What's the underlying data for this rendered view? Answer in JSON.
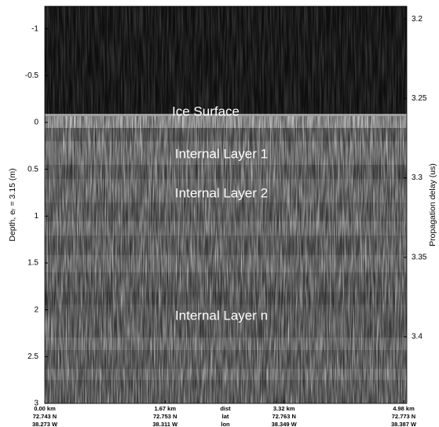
{
  "chart_data": {
    "type": "radargram",
    "ylabel": "Depth, eᵣ = 3.15 (m)",
    "y2label": "Propagation delay (us)",
    "ylim": [
      -1.24,
      3
    ],
    "yticks": [
      -1,
      -0.5,
      0,
      0.5,
      1,
      1.5,
      2,
      2.5,
      3
    ],
    "y2lim": [
      3.192,
      3.442
    ],
    "y2ticks": [
      3.2,
      3.25,
      3.3,
      3.35,
      3.4
    ],
    "xlim": [
      0,
      4.98
    ],
    "xticks": [
      {
        "value": 0,
        "label": "0.00 km"
      },
      {
        "value": 1.67,
        "label": "1.67 km"
      },
      {
        "value": 3.32,
        "label": "3.32 km"
      },
      {
        "value": 4.98,
        "label": "4.98 km"
      }
    ],
    "row_names": [
      "dist",
      "lat",
      "lon"
    ],
    "lat_labels": [
      "72.743 N",
      "72.753 N",
      "72.763 N",
      "72.773 N"
    ],
    "lon_labels": [
      "38.273 W",
      "38.311 W",
      "38.349 W",
      "38.387 W"
    ],
    "annotations": [
      "Ice Surface",
      "Internal Layer 1",
      "Internal Layer 2",
      "Internal Layer n"
    ]
  }
}
